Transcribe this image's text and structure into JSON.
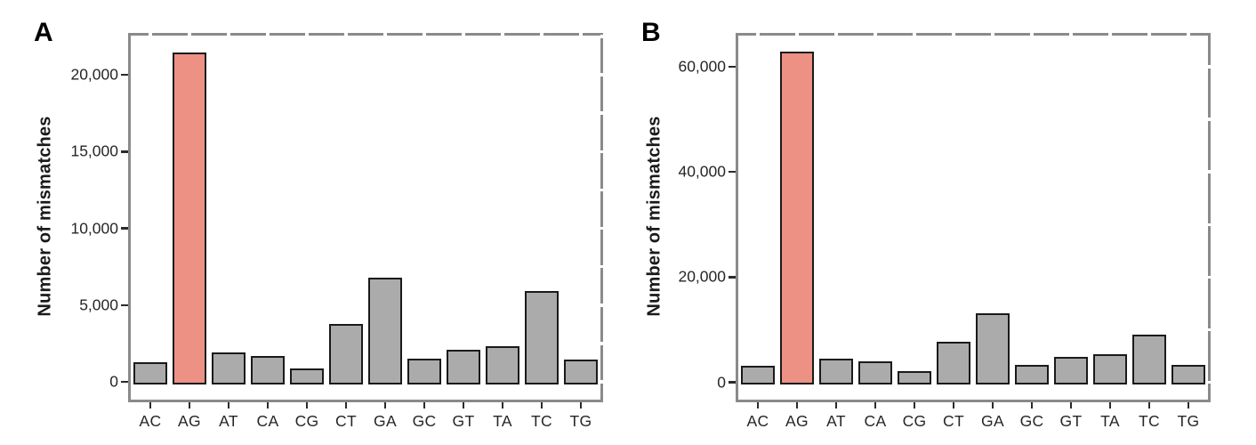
{
  "figure": {
    "background": "#ffffff",
    "bar_fill_default": "#ABABAB",
    "bar_fill_highlight": "#EC9184",
    "bar_stroke": "#1A1A1A",
    "panel_border_color": "#8A8A8A",
    "tick_color": "#2B2B2B",
    "text_color": "#262626"
  },
  "chart_data": [
    {
      "type": "bar",
      "panel_label": "A",
      "ylabel": "Number of mismatches",
      "xlabel": "",
      "categories": [
        "AC",
        "AG",
        "AT",
        "CA",
        "CG",
        "CT",
        "GA",
        "GC",
        "GT",
        "TA",
        "TC",
        "TG"
      ],
      "values": [
        1300,
        21450,
        1950,
        1700,
        900,
        3750,
        6800,
        1500,
        2100,
        2350,
        5900,
        1450
      ],
      "highlight_category": "AG",
      "yticks": [
        0,
        5000,
        10000,
        15000,
        20000
      ],
      "ytick_labels": [
        "0",
        "5,000",
        "10,000",
        "15,000",
        "20,000"
      ],
      "ylim": [
        -1150,
        22550
      ],
      "minor_tick_step": 2500,
      "grid": false,
      "legend": "none"
    },
    {
      "type": "bar",
      "panel_label": "B",
      "ylabel": "Number of mismatches",
      "xlabel": "",
      "categories": [
        "AC",
        "AG",
        "AT",
        "CA",
        "CG",
        "CT",
        "GA",
        "GC",
        "GT",
        "TA",
        "TC",
        "TG"
      ],
      "values": [
        3100,
        62900,
        4550,
        3950,
        2150,
        7750,
        13200,
        3400,
        4800,
        5350,
        9100,
        3300
      ],
      "highlight_category": "AG",
      "yticks": [
        0,
        20000,
        40000,
        60000
      ],
      "ytick_labels": [
        "0",
        "20,000",
        "40,000",
        "60,000"
      ],
      "ylim": [
        -3270,
        65900
      ],
      "minor_tick_step": 10000,
      "grid": false,
      "legend": "none"
    }
  ]
}
